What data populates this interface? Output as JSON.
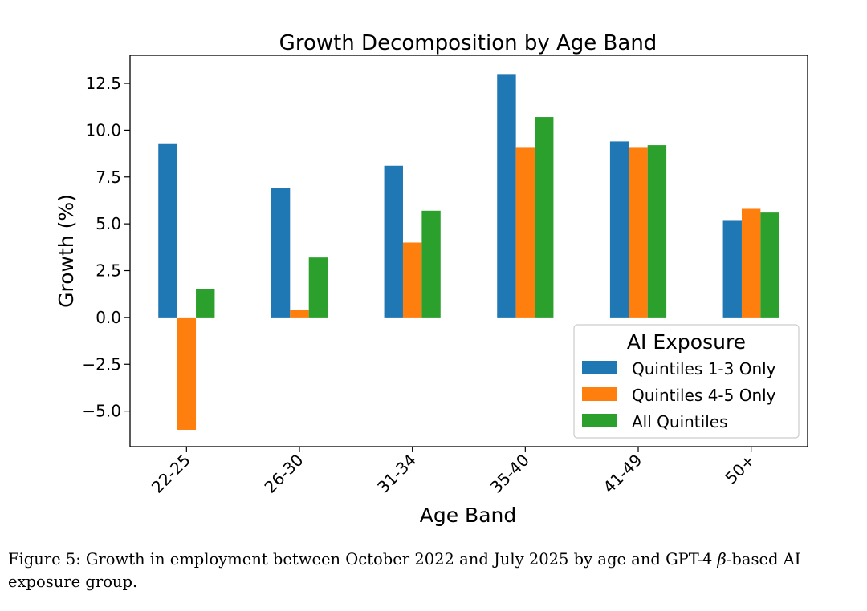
{
  "chart_data": {
    "type": "bar",
    "title": "Growth Decomposition by Age Band",
    "xlabel": "Age Band",
    "ylabel": "Growth (%)",
    "categories": [
      "22-25",
      "26-30",
      "31-34",
      "35-40",
      "41-49",
      "50+"
    ],
    "series": [
      {
        "name": "Quintiles 1-3 Only",
        "color": "#1f77b4",
        "values": [
          9.3,
          6.9,
          8.1,
          13.0,
          9.4,
          5.2
        ]
      },
      {
        "name": "Quintiles 4-5 Only",
        "color": "#ff7f0e",
        "values": [
          -6.0,
          0.4,
          4.0,
          9.1,
          9.1,
          5.8
        ]
      },
      {
        "name": "All Quintiles",
        "color": "#2ca02c",
        "values": [
          1.5,
          3.2,
          5.7,
          10.7,
          9.2,
          5.6
        ]
      }
    ],
    "ylim": [
      -6.9,
      14.0
    ],
    "yticks": [
      -5.0,
      -2.5,
      0.0,
      2.5,
      5.0,
      7.5,
      10.0,
      12.5
    ],
    "ytick_labels": [
      "−5.0",
      "−2.5",
      "0.0",
      "2.5",
      "5.0",
      "7.5",
      "10.0",
      "12.5"
    ],
    "legend": {
      "title": "AI Exposure",
      "placement": "lower-right"
    },
    "grid": false
  },
  "caption": {
    "label": "Figure 5:",
    "text_before_symbol": "Growth in employment between October 2022 and July 2025 by age and GPT-4 ",
    "symbol": "β",
    "text_after_symbol": "-based AI exposure group."
  }
}
